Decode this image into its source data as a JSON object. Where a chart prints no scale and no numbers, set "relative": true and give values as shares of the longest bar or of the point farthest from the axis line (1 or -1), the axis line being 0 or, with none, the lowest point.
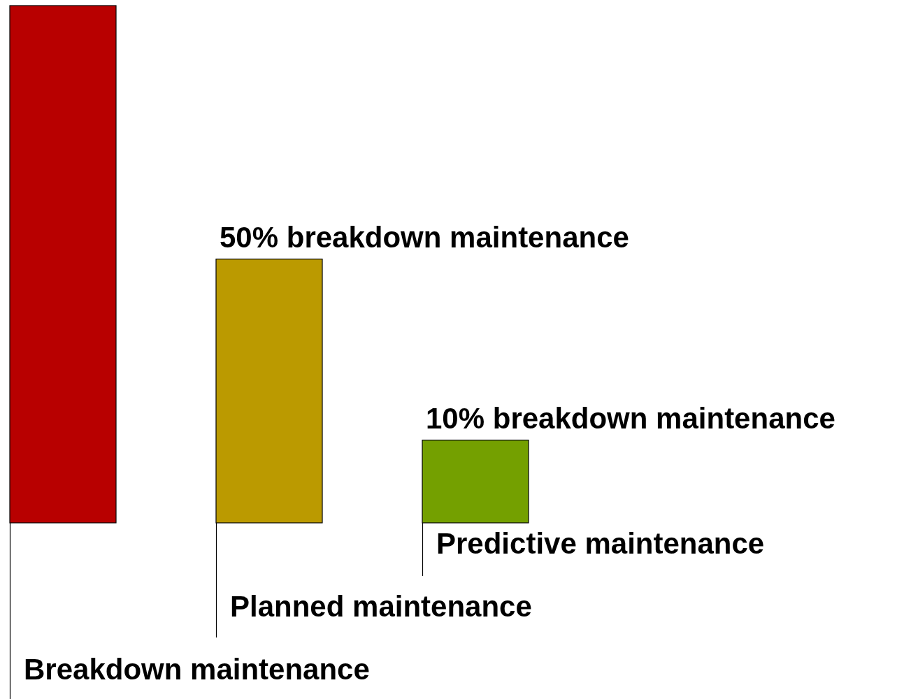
{
  "chart_data": {
    "type": "bar",
    "relative": true,
    "categories": [
      null,
      null,
      null
    ],
    "values": [
      1,
      0.51,
      0.16
    ],
    "colors": [
      "#b80000",
      "#bb9a00",
      "#74a000"
    ],
    "annotations": [
      "Breakdown maintenance",
      "Planned maintenance",
      "Predictive maintenance",
      "50% breakdown maintenance",
      "10% breakdown maintenance"
    ],
    "legend": false
  }
}
